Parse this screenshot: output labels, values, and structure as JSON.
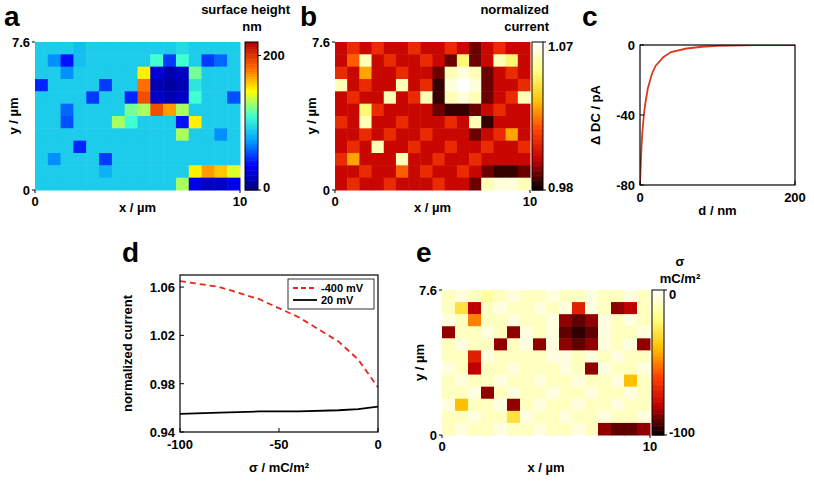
{
  "chart_data": [
    {
      "type": "heatmap",
      "panel": "a",
      "x_label": "x / µm",
      "y_label": "y / µm",
      "xlim": [
        0,
        10
      ],
      "ylim": [
        0,
        7.6
      ],
      "xticks": [
        0,
        10
      ],
      "yticks": [
        0,
        7.6
      ],
      "colorbar_label": [
        "surface height",
        "nm"
      ],
      "colorbar_range": [
        0,
        220
      ],
      "colorbar_ticks": [
        0,
        200
      ],
      "colors": [
        "#00007f",
        "#0000ff",
        "#00a0ff",
        "#40ffd0",
        "#ffff00",
        "#ff6000",
        "#b00000"
      ],
      "cells": [
        [
          90,
          90,
          90,
          85,
          90,
          90,
          90,
          90,
          90,
          90,
          90,
          95,
          90,
          90,
          90,
          90
        ],
        [
          90,
          70,
          40,
          85,
          90,
          90,
          90,
          90,
          90,
          110,
          50,
          110,
          90,
          50,
          60,
          90
        ],
        [
          90,
          90,
          70,
          90,
          90,
          90,
          90,
          90,
          150,
          25,
          15,
          20,
          120,
          90,
          90,
          90
        ],
        [
          45,
          90,
          90,
          90,
          90,
          50,
          90,
          90,
          180,
          15,
          10,
          15,
          100,
          90,
          90,
          90
        ],
        [
          90,
          90,
          90,
          90,
          50,
          90,
          90,
          45,
          190,
          20,
          15,
          20,
          110,
          90,
          90,
          55
        ],
        [
          90,
          90,
          60,
          90,
          90,
          90,
          90,
          120,
          130,
          190,
          170,
          130,
          90,
          90,
          90,
          90
        ],
        [
          90,
          90,
          55,
          90,
          90,
          90,
          130,
          110,
          90,
          90,
          90,
          40,
          150,
          90,
          90,
          90
        ],
        [
          90,
          90,
          90,
          90,
          90,
          90,
          90,
          90,
          90,
          90,
          90,
          130,
          90,
          90,
          70,
          90
        ],
        [
          90,
          90,
          90,
          45,
          90,
          90,
          90,
          90,
          90,
          90,
          90,
          90,
          90,
          90,
          90,
          90
        ],
        [
          90,
          70,
          90,
          90,
          90,
          50,
          90,
          90,
          90,
          90,
          90,
          90,
          90,
          90,
          90,
          90
        ],
        [
          90,
          90,
          90,
          90,
          90,
          80,
          90,
          90,
          90,
          90,
          90,
          90,
          150,
          170,
          160,
          140
        ],
        [
          90,
          90,
          90,
          90,
          90,
          90,
          90,
          90,
          90,
          90,
          90,
          130,
          30,
          20,
          20,
          30
        ]
      ]
    },
    {
      "type": "heatmap",
      "panel": "b",
      "x_label": "x / µm",
      "y_label": "y / µm",
      "xlim": [
        0,
        10
      ],
      "ylim": [
        0,
        7.6
      ],
      "xticks": [
        0,
        10
      ],
      "yticks": [
        0,
        7.6
      ],
      "colorbar_label": [
        "normalized",
        "current"
      ],
      "colorbar_range": [
        0.98,
        1.07
      ],
      "colorbar_ticks": [
        0.98,
        1.07
      ],
      "colors": [
        "#000000",
        "#c00000",
        "#ff4000",
        "#ffc000",
        "#ffff80",
        "#ffffff"
      ],
      "cells": [
        [
          1.0,
          1.01,
          1.0,
          1.01,
          1.0,
          1.0,
          1.01,
          1.0,
          1.0,
          1.01,
          1.0,
          0.99,
          1.0,
          1.01,
          1.0,
          1.0
        ],
        [
          1.0,
          1.02,
          1.06,
          1.0,
          1.01,
          1.0,
          1.0,
          1.01,
          1.0,
          0.99,
          1.05,
          0.99,
          1.0,
          1.06,
          1.05,
          1.0
        ],
        [
          1.01,
          1.0,
          1.03,
          1.0,
          1.0,
          1.01,
          1.0,
          1.0,
          0.99,
          1.06,
          1.065,
          1.06,
          0.99,
          1.0,
          1.01,
          1.0
        ],
        [
          1.06,
          1.0,
          1.01,
          1.0,
          1.0,
          1.06,
          1.0,
          1.01,
          0.985,
          1.065,
          1.07,
          1.065,
          0.99,
          1.0,
          1.0,
          1.01
        ],
        [
          1.0,
          1.01,
          1.0,
          1.0,
          1.06,
          1.0,
          1.01,
          1.06,
          0.985,
          1.06,
          1.065,
          1.06,
          0.99,
          1.0,
          1.01,
          1.06
        ],
        [
          1.0,
          1.0,
          1.05,
          1.01,
          1.0,
          1.0,
          1.0,
          1.0,
          0.99,
          0.985,
          0.985,
          0.99,
          1.0,
          1.01,
          1.0,
          1.0
        ],
        [
          1.01,
          1.0,
          1.06,
          1.0,
          1.0,
          1.01,
          1.0,
          1.0,
          1.0,
          1.01,
          1.0,
          1.06,
          0.985,
          1.0,
          1.0,
          1.0
        ],
        [
          1.0,
          1.0,
          1.01,
          1.0,
          1.01,
          1.0,
          1.0,
          1.01,
          1.0,
          1.0,
          1.0,
          0.99,
          1.0,
          1.01,
          1.03,
          1.0
        ],
        [
          1.0,
          1.01,
          1.0,
          1.06,
          1.0,
          1.0,
          1.01,
          1.0,
          1.0,
          1.01,
          1.0,
          1.0,
          1.01,
          1.0,
          1.0,
          1.01
        ],
        [
          1.01,
          1.03,
          1.0,
          1.0,
          1.0,
          1.06,
          1.0,
          1.0,
          1.01,
          1.0,
          1.0,
          1.01,
          1.0,
          1.0,
          1.0,
          1.0
        ],
        [
          1.0,
          1.0,
          1.01,
          1.0,
          1.0,
          1.02,
          1.0,
          1.01,
          1.0,
          1.0,
          1.01,
          1.0,
          0.99,
          0.985,
          0.985,
          0.99
        ],
        [
          1.0,
          1.01,
          1.0,
          1.0,
          1.01,
          1.0,
          1.0,
          1.0,
          1.01,
          1.0,
          1.0,
          0.99,
          1.06,
          1.065,
          1.065,
          1.06
        ]
      ]
    },
    {
      "type": "line",
      "panel": "c",
      "x_label": "d / nm",
      "y_label": "Δ DC / pA",
      "xlim": [
        0,
        200
      ],
      "ylim": [
        -80,
        0
      ],
      "xticks": [
        0,
        200
      ],
      "yticks": [
        -80,
        -40,
        0
      ],
      "x": [
        0,
        1,
        2,
        3,
        5,
        7,
        10,
        15,
        20,
        30,
        40,
        60,
        80,
        100,
        150,
        200
      ],
      "series": [
        {
          "color": "#d63c1e",
          "line_style": "solid",
          "values": [
            -80,
            -68,
            -58,
            -50,
            -40,
            -33,
            -25,
            -17,
            -12,
            -7,
            -4,
            -2,
            -1,
            -0.5,
            -0.1,
            0
          ]
        }
      ]
    },
    {
      "type": "line",
      "panel": "d",
      "x_label": "σ / mC/m²",
      "y_label": "normalized current",
      "xlim": [
        -100,
        0
      ],
      "ylim": [
        0.94,
        1.07
      ],
      "xticks": [
        -100,
        -50,
        0
      ],
      "yticks": [
        0.94,
        0.98,
        1.02,
        1.06
      ],
      "legend": "top-right",
      "x": [
        -100,
        -80,
        -60,
        -40,
        -20,
        -10,
        0
      ],
      "series": [
        {
          "name": "-400 mV",
          "color": "#e8271d",
          "line_style": "dashed",
          "values": [
            1.065,
            1.06,
            1.05,
            1.035,
            1.015,
            1.0,
            0.977
          ]
        },
        {
          "name": "20 mV",
          "color": "#000000",
          "line_style": "solid",
          "values": [
            0.955,
            0.956,
            0.957,
            0.957,
            0.958,
            0.959,
            0.961
          ]
        }
      ]
    },
    {
      "type": "heatmap",
      "panel": "e",
      "x_label": "x / µm",
      "y_label": "y / µm",
      "xlim": [
        0,
        10
      ],
      "ylim": [
        0,
        7.6
      ],
      "xticks": [
        0,
        10
      ],
      "yticks": [
        0,
        7.6
      ],
      "colorbar_label": [
        "σ",
        "mC/m²"
      ],
      "colorbar_range": [
        -100,
        0
      ],
      "colorbar_ticks": [
        -100,
        0
      ],
      "colors": [
        "#000000",
        "#c00000",
        "#ff4000",
        "#ffc000",
        "#ffff80",
        "#ffffff"
      ],
      "cells": [
        [
          -10,
          -5,
          -10,
          -15,
          -10,
          -5,
          -10,
          -10,
          -5,
          -10,
          -10,
          -5,
          -10,
          -10,
          -5,
          -10
        ],
        [
          -10,
          -30,
          -80,
          -10,
          -5,
          -10,
          -10,
          -5,
          -10,
          -5,
          -70,
          -5,
          -10,
          -85,
          -80,
          -10
        ],
        [
          -5,
          -10,
          -50,
          -10,
          -10,
          -5,
          -10,
          -10,
          -5,
          -85,
          -90,
          -85,
          -5,
          -10,
          -5,
          -10
        ],
        [
          -85,
          -10,
          -10,
          -5,
          -10,
          -85,
          -5,
          -10,
          -5,
          -90,
          -95,
          -90,
          -5,
          -10,
          -10,
          -5
        ],
        [
          -10,
          -5,
          -10,
          -10,
          -85,
          -10,
          -5,
          -85,
          -5,
          -85,
          -90,
          -85,
          -5,
          -10,
          -5,
          -85
        ],
        [
          -10,
          -10,
          -70,
          -5,
          -10,
          -10,
          -10,
          -10,
          -5,
          -5,
          -10,
          -5,
          -10,
          -5,
          -10,
          -10
        ],
        [
          -5,
          -10,
          -80,
          -10,
          -10,
          -5,
          -10,
          -10,
          -10,
          -5,
          -10,
          -85,
          -5,
          -10,
          -10,
          -5
        ],
        [
          -10,
          -5,
          -10,
          -10,
          -5,
          -10,
          -10,
          -5,
          -10,
          -10,
          -5,
          -10,
          -10,
          -5,
          -40,
          -10
        ],
        [
          -10,
          -10,
          -5,
          -85,
          -10,
          -5,
          -10,
          -10,
          -5,
          -10,
          -10,
          -5,
          -10,
          -10,
          -5,
          -10
        ],
        [
          -5,
          -40,
          -10,
          -10,
          -5,
          -85,
          -10,
          -5,
          -10,
          -10,
          -5,
          -10,
          -10,
          -5,
          -10,
          -10
        ],
        [
          -10,
          -10,
          -5,
          -10,
          -10,
          -30,
          -5,
          -10,
          -10,
          -5,
          -10,
          -10,
          -5,
          -10,
          -10,
          -5
        ],
        [
          -10,
          -5,
          -10,
          -10,
          -5,
          -10,
          -10,
          -5,
          -10,
          -10,
          -5,
          -10,
          -85,
          -90,
          -90,
          -85
        ]
      ]
    }
  ]
}
